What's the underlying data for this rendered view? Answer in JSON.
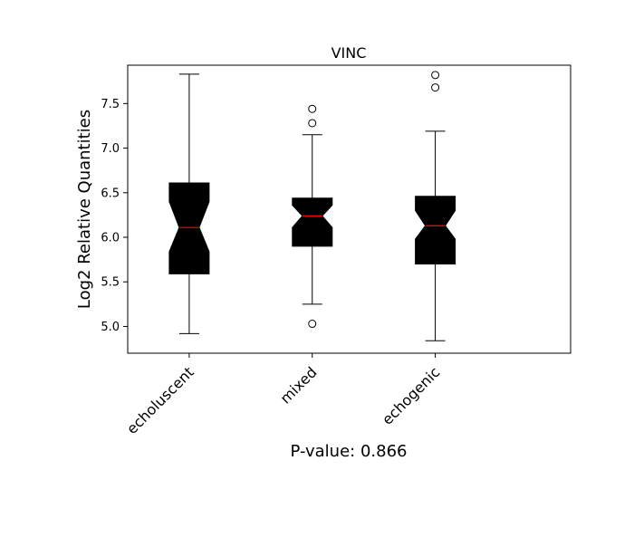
{
  "chart_data": {
    "type": "box",
    "title": "VINC",
    "xlabel": "P-value: 0.866",
    "ylabel": "Log2 Relative Quantities",
    "categories": [
      "echoluscent",
      "mixed",
      "echogenic"
    ],
    "xlim": [
      0.5,
      4.1
    ],
    "ylim": [
      4.7,
      7.93
    ],
    "yticks": [
      "5.0",
      "5.5",
      "6.0",
      "6.5",
      "7.0",
      "7.5"
    ],
    "notched": true,
    "box_color": "#000000",
    "median_color": "#ff0000",
    "boxes": [
      {
        "name": "echoluscent",
        "whisker_low": 4.92,
        "q1": 5.59,
        "median": 6.11,
        "q3": 6.61,
        "whisker_high": 7.83,
        "notch_low": 5.84,
        "notch_high": 6.4,
        "outliers": []
      },
      {
        "name": "mixed",
        "whisker_low": 5.25,
        "q1": 5.9,
        "median": 6.24,
        "q3": 6.44,
        "whisker_high": 7.15,
        "notch_low": 6.11,
        "notch_high": 6.36,
        "outliers": [
          7.44,
          7.28,
          5.03
        ]
      },
      {
        "name": "echogenic",
        "whisker_low": 4.84,
        "q1": 5.7,
        "median": 6.13,
        "q3": 6.46,
        "whisker_high": 7.19,
        "notch_low": 5.98,
        "notch_high": 6.3,
        "outliers": [
          7.82,
          7.68
        ]
      }
    ]
  }
}
